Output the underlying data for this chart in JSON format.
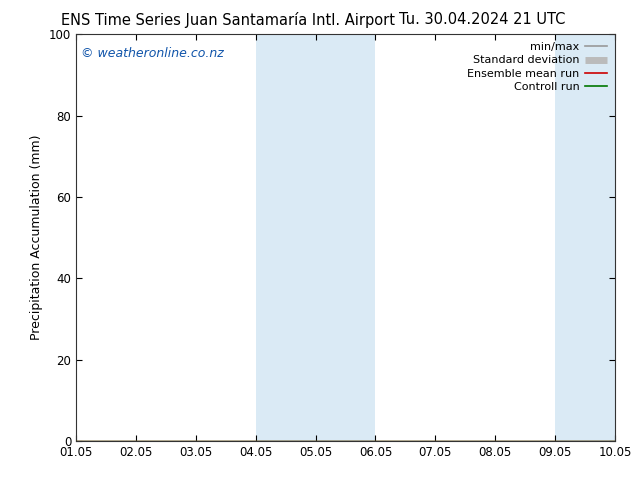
{
  "title_left": "ENS Time Series Juan Santamaría Intl. Airport",
  "title_right": "Tu. 30.04.2024 21 UTC",
  "ylabel": "Precipitation Accumulation (mm)",
  "watermark": "© weatheronline.co.nz",
  "ylim": [
    0,
    100
  ],
  "yticks": [
    0,
    20,
    40,
    60,
    80,
    100
  ],
  "xtick_labels": [
    "01.05",
    "02.05",
    "03.05",
    "04.05",
    "05.05",
    "06.05",
    "07.05",
    "08.05",
    "09.05",
    "10.05"
  ],
  "shaded_bands": [
    {
      "xstart": 3.0,
      "xend": 5.0
    },
    {
      "xstart": 8.0,
      "xend": 9.0
    }
  ],
  "shaded_color": "#daeaf5",
  "bg_color": "#ffffff",
  "legend_items": [
    {
      "label": "min/max",
      "color": "#999999",
      "lw": 1.2
    },
    {
      "label": "Standard deviation",
      "color": "#bbbbbb",
      "lw": 5
    },
    {
      "label": "Ensemble mean run",
      "color": "#cc0000",
      "lw": 1.2
    },
    {
      "label": "Controll run",
      "color": "#007700",
      "lw": 1.2
    }
  ],
  "watermark_color": "#1155aa",
  "title_fontsize": 10.5,
  "axis_label_fontsize": 9,
  "tick_fontsize": 8.5,
  "legend_fontsize": 8
}
